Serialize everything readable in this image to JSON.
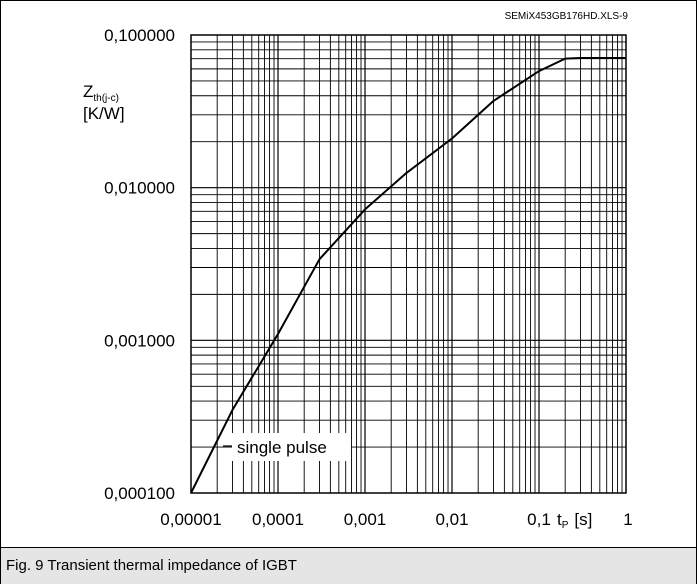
{
  "figure_id": "SEMiX453GB176HD.XLS-9",
  "caption": "Fig. 9 Transient thermal impedance of IGBT",
  "y_axis": {
    "symbol": "Z",
    "subscript": "th(j-c)",
    "unit": "[K/W]"
  },
  "x_axis": {
    "symbol": "t",
    "subscript": "P",
    "unit": "[s]"
  },
  "annotation": "single pulse",
  "chart_data": {
    "type": "line",
    "title": "",
    "xscale": "log",
    "yscale": "log",
    "xlim": [
      1e-05,
      1
    ],
    "ylim": [
      0.0001,
      0.1
    ],
    "x_tick_labels": [
      "0,00001",
      "0,0001",
      "0,001",
      "0,01",
      "0,1",
      "1"
    ],
    "y_tick_labels": [
      "0,000100",
      "0,001000",
      "0,010000",
      "0,100000"
    ],
    "grid": true,
    "series": [
      {
        "name": "",
        "color": "#000000",
        "points": [
          [
            1e-05,
            0.0001
          ],
          [
            3e-05,
            0.00035
          ],
          [
            0.0001,
            0.0011
          ],
          [
            0.0003,
            0.0034
          ],
          [
            0.001,
            0.0072
          ],
          [
            0.003,
            0.0125
          ],
          [
            0.01,
            0.021
          ],
          [
            0.03,
            0.037
          ],
          [
            0.1,
            0.058
          ],
          [
            0.2,
            0.07
          ],
          [
            0.3,
            0.0707
          ],
          [
            1,
            0.0707
          ]
        ]
      }
    ]
  }
}
